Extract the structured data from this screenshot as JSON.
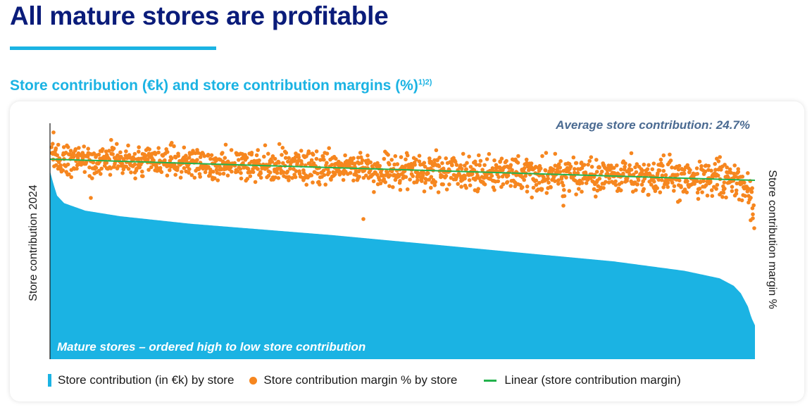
{
  "page": {
    "title": "All mature stores are profitable",
    "subtitle": "Store contribution (€k) and store contribution margins (%)",
    "subtitle_footnote": "1)2)"
  },
  "chart_data": {
    "type": "bar+scatter+line",
    "title": "Store contribution (€k) and store contribution margins (%)",
    "ylabel_left": "Store contribution 2024",
    "ylabel_right": "Store contribution margin %",
    "x_description": "Mature stores – ordered high to low store contribution",
    "annotation": "Average store contribution: 24.7%",
    "legend": [
      "Store contribution (in €k) by store",
      "Store contribution margin % by store",
      "Linear (store contribution margin)"
    ],
    "legend_position": "bottom",
    "grid": false,
    "axis_tick_labels": false,
    "average_margin_pct": 24.7,
    "series": [
      {
        "name": "Store contribution (in €k) by store",
        "kind": "area-bars",
        "shape": "sorted descending; steep drop for the top few stores, gentle near-linear decline across the middle, steep drop for the last few stores",
        "profile_index_pct": [
          0,
          0.5,
          1,
          2,
          5,
          10,
          20,
          40,
          60,
          80,
          90,
          95,
          97,
          98,
          99,
          99.5,
          100
        ],
        "profile_relative_value": [
          1.0,
          0.93,
          0.87,
          0.83,
          0.79,
          0.76,
          0.72,
          0.66,
          0.59,
          0.52,
          0.47,
          0.43,
          0.39,
          0.35,
          0.28,
          0.22,
          0.18
        ]
      },
      {
        "name": "Store contribution margin % by store",
        "kind": "scatter",
        "trend": "slightly declining from left to right with wide scatter; a few low outliers on the far right"
      },
      {
        "name": "Linear (store contribution margin)",
        "kind": "line",
        "trend": "straight line, gently declining from left to right"
      }
    ]
  },
  "colors": {
    "title": "#0a1c7a",
    "accent": "#1bb3e3",
    "bars": "#1bb3e3",
    "dots": "#f6861f",
    "trendline": "#22b24c",
    "annotation": "#4a6a91",
    "axis": "#1a1a1a"
  }
}
